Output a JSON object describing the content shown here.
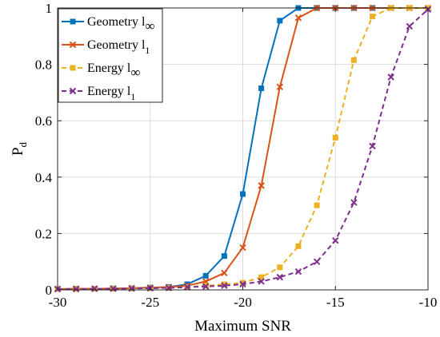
{
  "chart_data": {
    "type": "line",
    "xlabel": "Maximum SNR",
    "ylabel": "P",
    "ylabel_sub": "d",
    "xlim": [
      -30,
      -10
    ],
    "ylim": [
      0,
      1
    ],
    "x_ticks": [
      -30,
      -25,
      -20,
      -15,
      -10
    ],
    "x_tick_labels": [
      "-30",
      "-25",
      "-20",
      "-15",
      "-10"
    ],
    "y_ticks": [
      0,
      0.2,
      0.4,
      0.6,
      0.8,
      1
    ],
    "y_tick_labels": [
      "0",
      "0.2",
      "0.4",
      "0.6",
      "0.8",
      "1"
    ],
    "grid": true,
    "legend_position": "top-left",
    "x": [
      -30,
      -29,
      -28,
      -27,
      -26,
      -25,
      -24,
      -23,
      -22,
      -21,
      -20,
      -19,
      -18,
      -17,
      -16,
      -15,
      -14,
      -13,
      -12,
      -11,
      -10
    ],
    "series": [
      {
        "name": "Geometry l",
        "name_sub": "∞",
        "color": "#0072BD",
        "marker": "square",
        "dash": "solid",
        "values": [
          0.003,
          0.004,
          0.004,
          0.005,
          0.006,
          0.008,
          0.01,
          0.02,
          0.05,
          0.12,
          0.34,
          0.715,
          0.955,
          1.0,
          1.0,
          1.0,
          1.0,
          1.0,
          1.0,
          1.0,
          1.0
        ]
      },
      {
        "name": "Geometry l",
        "name_sub": "1",
        "color": "#D95319",
        "marker": "x",
        "dash": "solid",
        "values": [
          0.003,
          0.004,
          0.004,
          0.005,
          0.006,
          0.008,
          0.01,
          0.015,
          0.03,
          0.06,
          0.15,
          0.37,
          0.72,
          0.965,
          1.0,
          1.0,
          1.0,
          1.0,
          1.0,
          1.0,
          1.0
        ]
      },
      {
        "name": "Energy l",
        "name_sub": "∞",
        "color": "#EDB120",
        "marker": "square",
        "dash": "dashed",
        "values": [
          0.003,
          0.003,
          0.004,
          0.004,
          0.005,
          0.006,
          0.007,
          0.01,
          0.015,
          0.02,
          0.025,
          0.045,
          0.08,
          0.155,
          0.3,
          0.54,
          0.815,
          0.97,
          1.0,
          1.0,
          1.0
        ]
      },
      {
        "name": "Energy l",
        "name_sub": "1",
        "color": "#7E2F8E",
        "marker": "x",
        "dash": "dashed",
        "values": [
          0.003,
          0.003,
          0.004,
          0.004,
          0.005,
          0.006,
          0.007,
          0.01,
          0.012,
          0.015,
          0.02,
          0.03,
          0.045,
          0.065,
          0.1,
          0.175,
          0.31,
          0.51,
          0.755,
          0.935,
          0.995
        ]
      }
    ]
  }
}
